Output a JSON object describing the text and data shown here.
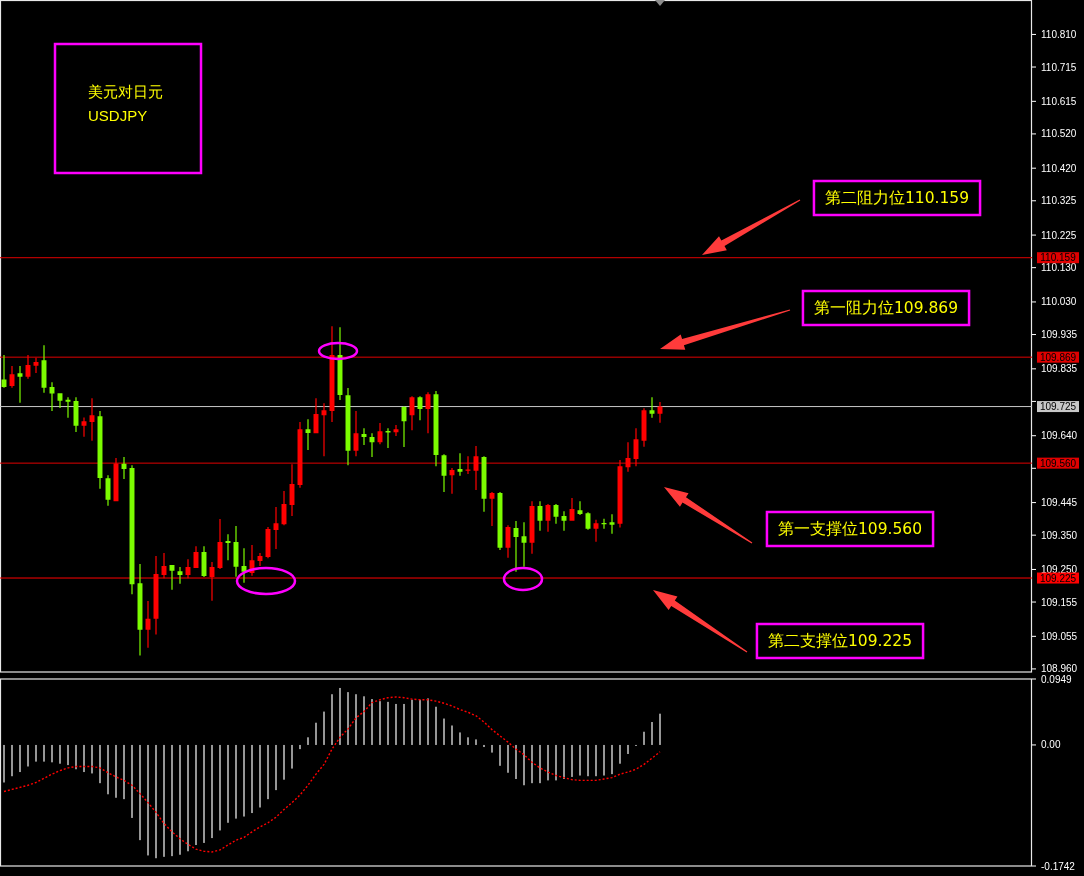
{
  "chart_data": [
    {
      "type": "candlestick",
      "title": "美元对日元",
      "subtitle": "USDJPY",
      "categories": [
        null,
        null,
        null,
        null,
        null,
        null,
        null,
        null,
        null,
        null,
        null,
        null,
        null,
        null,
        null,
        null,
        null,
        null,
        null,
        null,
        null,
        null,
        null,
        null,
        null,
        null,
        null,
        null,
        null,
        null,
        null,
        null,
        null,
        null,
        null,
        null,
        null,
        null,
        null,
        null,
        null,
        null,
        null,
        null,
        null,
        null,
        null,
        null,
        null,
        null,
        null,
        null,
        null,
        null,
        null,
        null,
        null,
        null,
        null,
        null,
        null,
        null,
        null,
        null,
        null,
        null,
        null,
        null,
        null,
        null,
        null,
        null,
        null,
        null,
        null,
        null,
        null,
        null,
        null,
        null,
        null,
        null,
        null,
        null,
        null,
        null,
        null,
        null,
        null,
        null,
        null,
        null,
        null,
        null,
        null,
        null,
        null,
        null,
        null,
        null,
        null,
        null,
        null,
        null,
        null,
        null,
        null,
        null,
        null,
        null,
        null,
        null,
        null,
        null,
        null,
        null,
        null,
        null,
        null,
        null,
        null,
        null,
        null,
        null,
        null,
        null,
        null,
        null,
        null
      ],
      "ohlc": [
        [
          109.804,
          109.875,
          109.78,
          109.782
        ],
        [
          109.785,
          109.843,
          109.78,
          109.819
        ],
        [
          109.822,
          109.843,
          109.736,
          109.812
        ],
        [
          109.812,
          109.875,
          109.806,
          109.846
        ],
        [
          109.844,
          109.867,
          109.823,
          109.855
        ],
        [
          109.86,
          109.904,
          109.765,
          109.78
        ],
        [
          109.782,
          109.796,
          109.712,
          109.763
        ],
        [
          109.764,
          109.764,
          109.721,
          109.742
        ],
        [
          109.745,
          109.752,
          109.692,
          109.739
        ],
        [
          109.741,
          109.752,
          109.651,
          109.669
        ],
        [
          109.669,
          109.693,
          109.637,
          109.682
        ],
        [
          109.68,
          109.749,
          109.625,
          109.7
        ],
        [
          109.697,
          109.712,
          109.485,
          109.517
        ],
        [
          109.516,
          109.525,
          109.436,
          109.453
        ],
        [
          109.449,
          109.575,
          109.449,
          109.559
        ],
        [
          109.558,
          109.578,
          109.514,
          109.543
        ],
        [
          109.546,
          109.554,
          109.178,
          109.207
        ],
        [
          109.21,
          109.266,
          108.999,
          109.074
        ],
        [
          109.074,
          109.158,
          109.022,
          109.106
        ],
        [
          109.106,
          109.289,
          109.06,
          109.237
        ],
        [
          109.234,
          109.298,
          109.224,
          109.26
        ],
        [
          109.263,
          109.263,
          109.191,
          109.246
        ],
        [
          109.245,
          109.257,
          109.208,
          109.234
        ],
        [
          109.234,
          109.28,
          109.224,
          109.257
        ],
        [
          109.254,
          109.318,
          109.254,
          109.301
        ],
        [
          109.301,
          109.318,
          109.228,
          109.231
        ],
        [
          109.228,
          109.272,
          109.159,
          109.257
        ],
        [
          109.254,
          109.397,
          109.251,
          109.33
        ],
        [
          109.333,
          109.353,
          109.277,
          109.327
        ],
        [
          109.33,
          109.377,
          109.229,
          109.258
        ],
        [
          109.26,
          109.312,
          109.211,
          109.243
        ],
        [
          109.24,
          109.321,
          109.232,
          109.277
        ],
        [
          109.275,
          109.298,
          109.26,
          109.289
        ],
        [
          109.286,
          109.374,
          109.283,
          109.368
        ],
        [
          109.365,
          109.432,
          109.31,
          109.385
        ],
        [
          109.382,
          109.479,
          109.379,
          109.441
        ],
        [
          109.438,
          109.557,
          109.406,
          109.499
        ],
        [
          109.496,
          109.68,
          109.488,
          109.659
        ],
        [
          109.659,
          109.688,
          109.598,
          109.648
        ],
        [
          109.647,
          109.749,
          109.647,
          109.703
        ],
        [
          109.7,
          109.735,
          109.58,
          109.714
        ],
        [
          109.712,
          109.959,
          109.68,
          109.875
        ],
        [
          109.875,
          109.956,
          109.744,
          109.759
        ],
        [
          109.758,
          109.779,
          109.554,
          109.596
        ],
        [
          109.596,
          109.712,
          109.58,
          109.647
        ],
        [
          109.645,
          109.662,
          109.613,
          109.636
        ],
        [
          109.636,
          109.647,
          109.578,
          109.621
        ],
        [
          109.621,
          109.677,
          109.615,
          109.653
        ],
        [
          109.653,
          109.662,
          109.604,
          109.65
        ],
        [
          109.65,
          109.671,
          109.639,
          109.659
        ],
        [
          109.724,
          109.726,
          109.607,
          109.682
        ],
        [
          109.7,
          109.755,
          109.656,
          109.752
        ],
        [
          109.752,
          109.755,
          109.685,
          109.718
        ],
        [
          109.718,
          109.767,
          109.647,
          109.761
        ],
        [
          109.761,
          109.77,
          109.551,
          109.584
        ],
        [
          109.583,
          109.586,
          109.476,
          109.523
        ],
        [
          109.525,
          109.546,
          109.471,
          109.54
        ],
        [
          109.543,
          109.589,
          109.523,
          109.535
        ],
        [
          109.538,
          109.58,
          109.528,
          109.541
        ],
        [
          109.538,
          109.61,
          109.482,
          109.58
        ],
        [
          109.578,
          109.58,
          109.418,
          109.456
        ],
        [
          109.456,
          109.476,
          109.377,
          109.473
        ],
        [
          109.473,
          109.476,
          109.307,
          109.313
        ],
        [
          109.313,
          109.379,
          109.284,
          109.374
        ],
        [
          109.371,
          109.391,
          109.243,
          109.345
        ],
        [
          109.347,
          109.388,
          109.258,
          109.328
        ],
        [
          109.328,
          109.449,
          109.296,
          109.435
        ],
        [
          109.435,
          109.449,
          109.363,
          109.392
        ],
        [
          109.392,
          109.441,
          109.36,
          109.438
        ],
        [
          109.438,
          109.441,
          109.383,
          109.404
        ],
        [
          109.406,
          109.42,
          109.363,
          109.392
        ],
        [
          109.392,
          109.458,
          109.392,
          109.426
        ],
        [
          109.423,
          109.449,
          109.409,
          109.412
        ],
        [
          109.414,
          109.417,
          109.366,
          109.369
        ],
        [
          109.369,
          109.395,
          109.331,
          109.385
        ],
        [
          109.385,
          109.398,
          109.369,
          109.382
        ],
        [
          109.388,
          109.411,
          109.354,
          109.38
        ],
        [
          109.383,
          109.569,
          109.372,
          109.551
        ],
        [
          109.548,
          109.621,
          109.535,
          109.575
        ],
        [
          109.572,
          109.662,
          109.551,
          109.63
        ],
        [
          109.625,
          109.72,
          109.608,
          109.714
        ],
        [
          109.714,
          109.752,
          109.692,
          109.704
        ],
        [
          109.704,
          109.738,
          109.678,
          109.725
        ],
        null,
        null,
        null,
        null,
        null,
        null,
        null,
        null,
        null,
        null,
        null,
        null,
        null,
        null,
        null,
        null,
        null,
        null,
        null,
        null,
        null,
        null,
        null,
        null,
        null,
        null,
        null,
        null,
        null,
        null,
        null,
        null,
        null,
        null,
        null,
        null,
        null,
        null,
        null,
        null,
        null,
        null,
        null,
        null,
        null,
        null
      ],
      "colors": [
        "#7cfc00",
        "#ff0000",
        "#7cfc00",
        "#ff0000",
        "#ff0000",
        "#7cfc00",
        "#7cfc00",
        "#7cfc00",
        "#7cfc00",
        "#7cfc00",
        "#ff0000",
        "#ff0000",
        "#7cfc00",
        "#7cfc00",
        "#ff0000",
        "#7cfc00",
        "#7cfc00",
        "#7cfc00",
        "#ff0000",
        "#ff0000",
        "#ff0000",
        "#7cfc00",
        "#7cfc00",
        "#ff0000",
        "#ff0000",
        "#7cfc00",
        "#ff0000",
        "#ff0000",
        "#7cfc00",
        "#7cfc00",
        "#7cfc00",
        "#ff0000",
        "#ff0000",
        "#ff0000",
        "#ff0000",
        "#ff0000",
        "#ff0000",
        "#ff0000",
        "#7cfc00",
        "#ff0000",
        "#ff0000",
        "#ff0000",
        "#7cfc00",
        "#7cfc00",
        "#ff0000",
        "#7cfc00",
        "#7cfc00",
        "#ff0000",
        "#7cfc00",
        "#ff0000",
        "#7cfc00",
        "#ff0000",
        "#7cfc00",
        "#ff0000",
        "#7cfc00",
        "#7cfc00",
        "#ff0000",
        "#7cfc00",
        "#ff0000",
        "#ff0000",
        "#7cfc00",
        "#ff0000",
        "#7cfc00",
        "#ff0000",
        "#7cfc00",
        "#7cfc00",
        "#ff0000",
        "#7cfc00",
        "#ff0000",
        "#7cfc00",
        "#7cfc00",
        "#ff0000",
        "#7cfc00",
        "#7cfc00",
        "#ff0000",
        "#7cfc00",
        "#7cfc00",
        "#ff0000",
        "#ff0000",
        "#ff0000",
        "#ff0000",
        "#7cfc00",
        "#ff0000",
        null,
        null,
        null,
        null,
        null,
        null,
        null,
        null,
        null,
        null,
        null,
        null,
        null,
        null,
        null,
        null,
        null,
        null,
        null,
        null,
        null,
        null,
        null,
        null,
        null,
        null,
        null,
        null,
        null,
        null,
        null,
        null,
        null,
        null,
        null,
        null,
        null,
        null,
        null,
        null,
        null,
        null,
        null,
        null,
        null,
        null
      ],
      "ylim": [
        108.951,
        110.909
      ],
      "yticks": [
        {
          "value": 110.81,
          "label": "110.810"
        },
        {
          "value": 110.715,
          "label": "110.715"
        },
        {
          "value": 110.615,
          "label": "110.615"
        },
        {
          "value": 110.52,
          "label": "110.520"
        },
        {
          "value": 110.42,
          "label": "110.420"
        },
        {
          "value": 110.325,
          "label": "110.325"
        },
        {
          "value": 110.225,
          "label": "110.225"
        },
        {
          "value": 110.13,
          "label": "110.130"
        },
        {
          "value": 110.03,
          "label": "110.030"
        },
        {
          "value": 109.935,
          "label": "109.935"
        },
        {
          "value": 109.835,
          "label": "109.835"
        },
        {
          "value": 109.74,
          "label": null
        },
        {
          "value": 109.64,
          "label": "109.640"
        },
        {
          "value": 109.545,
          "label": null
        },
        {
          "value": 109.445,
          "label": "109.445"
        },
        {
          "value": 109.35,
          "label": "109.350"
        },
        {
          "value": 109.25,
          "label": "109.250"
        },
        {
          "value": 109.155,
          "label": "109.155"
        },
        {
          "value": 109.055,
          "label": "109.055"
        },
        {
          "value": 108.96,
          "label": "108.960"
        }
      ],
      "ref_lines": [
        {
          "axis": "y",
          "value": 110.159,
          "label": "110.159",
          "color": "#e00000"
        },
        {
          "axis": "y",
          "value": 109.869,
          "label": "109.869",
          "color": "#e00000"
        },
        {
          "axis": "y",
          "value": 109.725,
          "label": "109.725",
          "color": "#c8c8c8"
        },
        {
          "axis": "y",
          "value": 109.56,
          "label": "109.560",
          "color": "#e00000"
        },
        {
          "axis": "y",
          "value": 109.225,
          "label": "109.225",
          "color": "#ff0000"
        }
      ],
      "annotations": [
        "第二阻力位110.159",
        "第一阻力位109.869",
        "第一支撑位109.560",
        "第二支撑位109.225"
      ],
      "tick_labels": "y"
    },
    {
      "type": "bar",
      "categories": [
        null,
        null,
        null,
        null,
        null,
        null,
        null,
        null,
        null,
        null,
        null,
        null,
        null,
        null,
        null,
        null,
        null,
        null,
        null,
        null,
        null,
        null,
        null,
        null,
        null,
        null,
        null,
        null,
        null,
        null,
        null,
        null,
        null,
        null,
        null,
        null,
        null,
        null,
        null,
        null,
        null,
        null,
        null,
        null,
        null,
        null,
        null,
        null,
        null,
        null,
        null,
        null,
        null,
        null,
        null,
        null,
        null,
        null,
        null,
        null,
        null,
        null,
        null,
        null,
        null,
        null,
        null,
        null,
        null,
        null,
        null,
        null,
        null,
        null,
        null,
        null,
        null,
        null,
        null,
        null,
        null,
        null,
        null,
        null,
        null,
        null,
        null,
        null,
        null,
        null,
        null,
        null,
        null,
        null,
        null,
        null,
        null,
        null,
        null,
        null,
        null,
        null,
        null,
        null,
        null,
        null,
        null,
        null,
        null,
        null,
        null,
        null,
        null,
        null,
        null,
        null,
        null,
        null,
        null,
        null,
        null,
        null,
        null,
        null,
        null,
        null,
        null,
        null,
        null
      ],
      "series": [
        {
          "type": "bar",
          "color": "#c8c8c8",
          "values": [
            -0.054,
            -0.045,
            -0.039,
            -0.031,
            -0.024,
            -0.024,
            -0.025,
            -0.027,
            -0.029,
            -0.035,
            -0.039,
            -0.041,
            -0.055,
            -0.071,
            -0.076,
            -0.078,
            -0.105,
            -0.137,
            -0.159,
            -0.163,
            -0.161,
            -0.16,
            -0.158,
            -0.153,
            -0.144,
            -0.141,
            -0.134,
            -0.123,
            -0.112,
            -0.106,
            -0.103,
            -0.098,
            -0.09,
            -0.078,
            -0.065,
            -0.05,
            -0.034,
            -0.006,
            0.011,
            0.032,
            0.048,
            0.073,
            0.082,
            0.076,
            0.073,
            0.07,
            0.066,
            0.063,
            0.062,
            0.059,
            0.059,
            0.065,
            0.065,
            0.067,
            0.055,
            0.038,
            0.028,
            0.018,
            0.011,
            0.008,
            -0.003,
            -0.011,
            -0.03,
            -0.04,
            -0.049,
            -0.058,
            -0.055,
            -0.055,
            -0.051,
            -0.051,
            -0.049,
            -0.046,
            -0.044,
            -0.045,
            -0.045,
            -0.044,
            -0.042,
            -0.027,
            -0.013,
            -0.001,
            0.019,
            0.033,
            0.045,
            null,
            null,
            null,
            null,
            null,
            null,
            null,
            null,
            null,
            null,
            null,
            null,
            null,
            null,
            null,
            null,
            null,
            null,
            null,
            null,
            null,
            null,
            null,
            null,
            null,
            null,
            null,
            null,
            null,
            null,
            null,
            null,
            null,
            null,
            null,
            null,
            null,
            null,
            null,
            null,
            null,
            null,
            null,
            null,
            null,
            null
          ]
        },
        {
          "type": "line",
          "color": "#ff0000",
          "line_style": "dotted",
          "values": [
            -0.067,
            -0.064,
            -0.061,
            -0.058,
            -0.054,
            -0.048,
            -0.042,
            -0.037,
            -0.033,
            -0.031,
            -0.031,
            -0.031,
            -0.033,
            -0.04,
            -0.046,
            -0.051,
            -0.058,
            -0.07,
            -0.083,
            -0.097,
            -0.113,
            -0.125,
            -0.135,
            -0.143,
            -0.15,
            -0.153,
            -0.154,
            -0.151,
            -0.144,
            -0.137,
            -0.133,
            -0.125,
            -0.118,
            -0.112,
            -0.104,
            -0.093,
            -0.083,
            -0.072,
            -0.058,
            -0.042,
            -0.028,
            -0.006,
            0.011,
            0.023,
            0.039,
            0.048,
            0.061,
            0.065,
            0.068,
            0.069,
            0.068,
            0.066,
            0.065,
            0.065,
            0.063,
            0.06,
            0.056,
            0.051,
            0.047,
            0.042,
            0.033,
            0.022,
            0.013,
            0.004,
            -0.006,
            -0.014,
            -0.025,
            -0.033,
            -0.039,
            -0.044,
            -0.047,
            -0.05,
            -0.051,
            -0.051,
            -0.051,
            -0.049,
            -0.047,
            -0.042,
            -0.039,
            -0.035,
            -0.028,
            -0.019,
            -0.01,
            null,
            null,
            null,
            null,
            null,
            null,
            null,
            null,
            null,
            null,
            null,
            null,
            null,
            null,
            null,
            null,
            null,
            null,
            null,
            null,
            null,
            null,
            null,
            null,
            null,
            null,
            null,
            null,
            null,
            null,
            null,
            null,
            null,
            null,
            null,
            null,
            null,
            null,
            null,
            null,
            null,
            null,
            null,
            null,
            null,
            null
          ]
        }
      ],
      "ylim": [
        -0.1742,
        0.0949
      ],
      "yticks": [
        0.0949,
        {
          "value": 0,
          "label": "0.00"
        },
        -0.1742
      ],
      "tick_labels": "y"
    }
  ]
}
